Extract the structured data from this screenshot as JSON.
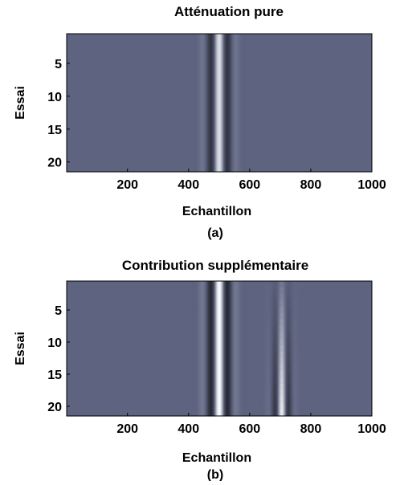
{
  "chart_data": [
    {
      "type": "heatmap",
      "title": "Atténuation pure",
      "xlabel": "Echantillon",
      "ylabel": "Essai",
      "caption": "(a)",
      "xlim": [
        1,
        1000
      ],
      "ylim": [
        1,
        21
      ],
      "x_ticks": [
        200,
        400,
        600,
        800,
        1000
      ],
      "y_ticks": [
        5,
        10,
        15,
        20
      ],
      "background_value": 0,
      "wavelets": [
        {
          "center": 500,
          "amplitude": 1.0,
          "period": 60,
          "width": 28,
          "trial_modulation": 0.2
        }
      ]
    },
    {
      "type": "heatmap",
      "title": "Contribution supplémentaire",
      "xlabel": "Echantillon",
      "ylabel": "Essai",
      "caption": "(b)",
      "xlim": [
        1,
        1000
      ],
      "ylim": [
        1,
        21
      ],
      "x_ticks": [
        200,
        400,
        600,
        800,
        1000
      ],
      "y_ticks": [
        5,
        10,
        15,
        20
      ],
      "background_value": 0,
      "wavelets": [
        {
          "center": 500,
          "amplitude": 1.0,
          "period": 60,
          "width": 28,
          "trial_modulation": 0.0
        },
        {
          "center": 705,
          "amplitude": 0.9,
          "period": 50,
          "width": 20,
          "trial_ramp": [
            0.15,
            1.0
          ]
        }
      ]
    }
  ]
}
